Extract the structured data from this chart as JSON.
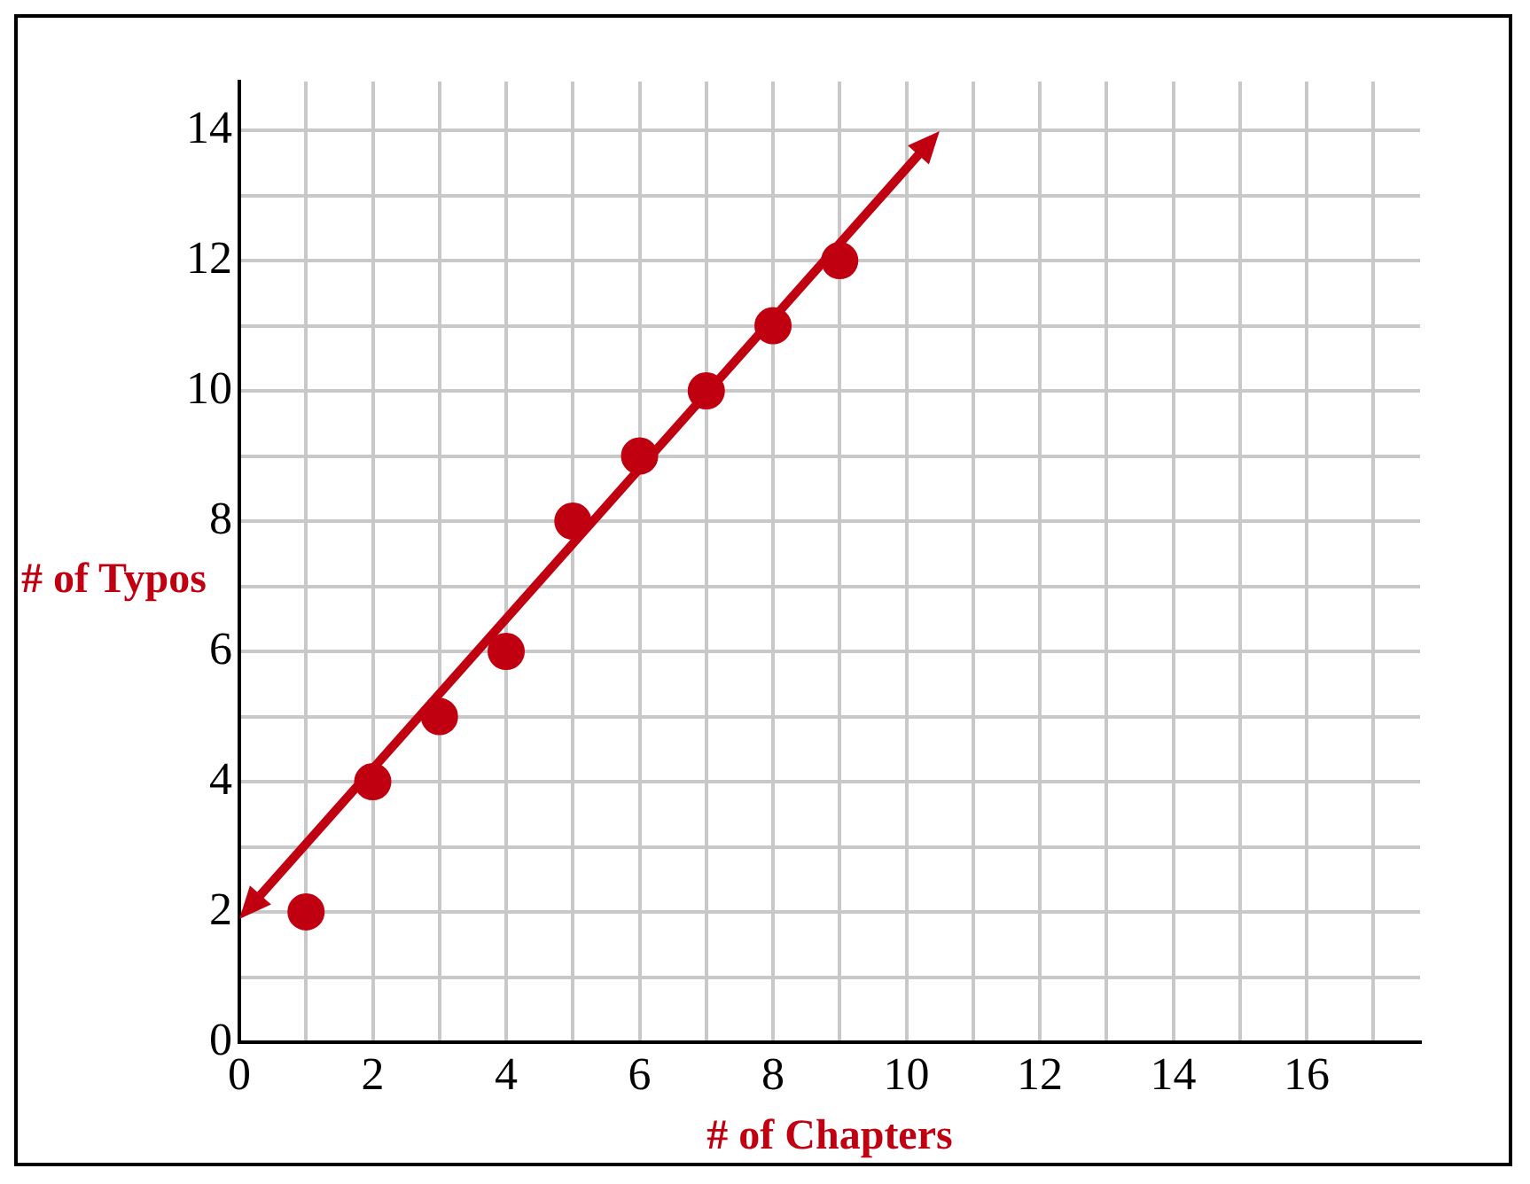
{
  "chart_data": {
    "type": "scatter",
    "xlabel": "# of Chapters",
    "ylabel": "# of Typos",
    "x": [
      1,
      2,
      3,
      4,
      5,
      6,
      7,
      8,
      9
    ],
    "series": [
      {
        "color": "#c00010",
        "values": [
          2,
          4,
          5,
          6,
          8,
          9,
          10,
          11,
          12
        ]
      }
    ],
    "xlim": [
      0,
      17.7
    ],
    "ylim": [
      0,
      14.75
    ],
    "xticks": [
      0,
      {
        "value": 1,
        "label": null
      },
      2,
      {
        "value": 3,
        "label": null
      },
      4,
      {
        "value": 5,
        "label": null
      },
      6,
      {
        "value": 7,
        "label": null
      },
      8,
      {
        "value": 9,
        "label": null
      },
      10,
      {
        "value": 11,
        "label": null
      },
      12,
      {
        "value": 13,
        "label": null
      },
      14,
      {
        "value": 15,
        "label": null
      },
      16,
      {
        "value": 17,
        "label": null
      }
    ],
    "yticks": [
      0,
      {
        "value": 1,
        "label": null
      },
      2,
      {
        "value": 3,
        "label": null
      },
      4,
      {
        "value": 5,
        "label": null
      },
      6,
      {
        "value": 7,
        "label": null
      },
      8,
      {
        "value": 9,
        "label": null
      },
      10,
      {
        "value": 11,
        "label": null
      },
      12,
      {
        "value": 13,
        "label": null
      },
      14
    ],
    "grid": true,
    "legend": false,
    "marker": "circle"
  }
}
